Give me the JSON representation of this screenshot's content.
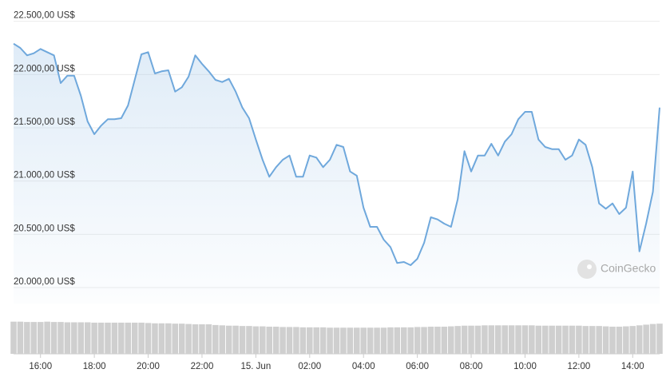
{
  "chart_data": {
    "type": "line",
    "watermark": "CoinGecko",
    "x": [
      15,
      15.25,
      15.5,
      15.75,
      16,
      16.25,
      16.5,
      16.75,
      17,
      17.25,
      17.5,
      17.75,
      18,
      18.25,
      18.5,
      18.75,
      19,
      19.25,
      19.5,
      19.75,
      20,
      20.25,
      20.5,
      20.75,
      21,
      21.25,
      21.5,
      21.75,
      22,
      22.25,
      22.5,
      22.75,
      23,
      23.25,
      23.5,
      23.75,
      24,
      24.25,
      24.5,
      24.75,
      25,
      25.25,
      25.5,
      25.75,
      26,
      26.25,
      26.5,
      26.75,
      27,
      27.25,
      27.5,
      27.75,
      28,
      28.25,
      28.5,
      28.75,
      29,
      29.25,
      29.5,
      29.75,
      30,
      30.25,
      30.5,
      30.75,
      31,
      31.25,
      31.5,
      31.75,
      32,
      32.25,
      32.5,
      32.75,
      33,
      33.25,
      33.5,
      33.75,
      34,
      34.25,
      34.5,
      34.75,
      35,
      35.25,
      35.5,
      35.75,
      36,
      36.25,
      36.5,
      36.75,
      37,
      37.25,
      37.5,
      37.75,
      38,
      38.25,
      38.5,
      38.75,
      39
    ],
    "series": [
      {
        "color": "#6fa8dc",
        "values": [
          22290,
          22250,
          22180,
          22200,
          22240,
          22210,
          22180,
          21920,
          21990,
          21990,
          21800,
          21560,
          21440,
          21520,
          21580,
          21580,
          21590,
          21710,
          21950,
          22190,
          22210,
          22010,
          22030,
          22040,
          21840,
          21880,
          21980,
          22180,
          22100,
          22030,
          21950,
          21930,
          21960,
          21840,
          21690,
          21590,
          21390,
          21200,
          21040,
          21130,
          21200,
          21240,
          21040,
          21040,
          21240,
          21220,
          21130,
          21200,
          21340,
          21320,
          21090,
          21050,
          20750,
          20570,
          20570,
          20450,
          20380,
          20230,
          20240,
          20210,
          20270,
          20420,
          20660,
          20640,
          20600,
          20570,
          20830,
          21280,
          21090,
          21240,
          21240,
          21350,
          21240,
          21370,
          21440,
          21580,
          21650,
          21650,
          21390,
          21320,
          21300,
          21300,
          21200,
          21240,
          21390,
          21340,
          21130,
          20790,
          20740,
          20790,
          20690,
          20750,
          21090,
          20340,
          20600,
          20900,
          21690
        ]
      }
    ],
    "volume": {
      "color": "#cfcfcf",
      "ylim": [
        0,
        100
      ],
      "values": [
        96,
        96,
        95,
        95,
        95,
        96,
        95,
        95,
        94,
        94,
        94,
        94,
        93,
        93,
        93,
        93,
        93,
        93,
        93,
        93,
        92,
        91,
        91,
        91,
        90,
        90,
        89,
        88,
        88,
        88,
        86,
        85,
        84,
        84,
        83,
        83,
        82,
        82,
        81,
        81,
        80,
        80,
        80,
        79,
        79,
        79,
        79,
        78,
        78,
        78,
        78,
        78,
        78,
        78,
        78,
        78,
        79,
        79,
        79,
        79,
        80,
        80,
        81,
        81,
        81,
        82,
        83,
        84,
        84,
        84,
        85,
        85,
        85,
        85,
        85,
        85,
        85,
        85,
        84,
        84,
        84,
        84,
        84,
        84,
        84,
        83,
        83,
        83,
        82,
        81,
        81,
        82,
        83,
        85,
        87,
        89,
        90
      ]
    },
    "xlim": [
      15,
      39
    ],
    "xticks": [
      {
        "value": 16,
        "label": "16:00"
      },
      {
        "value": 18,
        "label": "18:00"
      },
      {
        "value": 20,
        "label": "20:00"
      },
      {
        "value": 22,
        "label": "22:00"
      },
      {
        "value": 24,
        "label": "15. Jun"
      },
      {
        "value": 26,
        "label": "02:00"
      },
      {
        "value": 28,
        "label": "04:00"
      },
      {
        "value": 30,
        "label": "06:00"
      },
      {
        "value": 32,
        "label": "08:00"
      },
      {
        "value": 34,
        "label": "10:00"
      },
      {
        "value": 36,
        "label": "12:00"
      },
      {
        "value": 38,
        "label": "14:00"
      }
    ],
    "ylim": [
      19850,
      22550
    ],
    "yticks": [
      {
        "value": 20000,
        "label": "20.000,00 US$"
      },
      {
        "value": 20500,
        "label": "20.500,00 US$"
      },
      {
        "value": 21000,
        "label": "21.000,00 US$"
      },
      {
        "value": 21500,
        "label": "21.500,00 US$"
      },
      {
        "value": 22000,
        "label": "22.000,00 US$"
      },
      {
        "value": 22500,
        "label": "22.500,00 US$"
      }
    ],
    "grid": true
  }
}
